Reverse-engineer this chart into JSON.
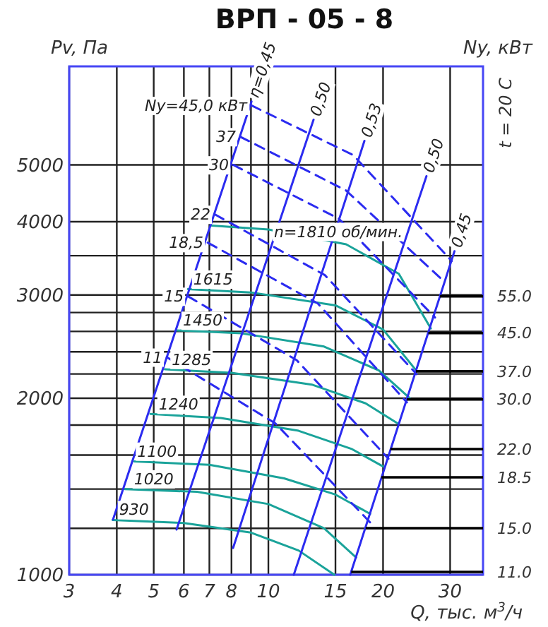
{
  "chart_data": {
    "type": "line",
    "title": "ВРП - 05 - 8",
    "xlabel": "Q, тыс. м$^{3}$/ч",
    "ylabel": "Pv, Па",
    "y2label": "Ny, кВт",
    "annotations": [
      "t = 20 C",
      {
        "text": "55.0",
        "x": 28.2,
        "y": 2984
      },
      {
        "text": "45.0",
        "x": 26.3,
        "y": 2583
      },
      {
        "text": "37.0",
        "x": 24.4,
        "y": 2223
      },
      {
        "text": "30.0",
        "x": 23.1,
        "y": 1990
      },
      {
        "text": "22.0",
        "x": 20.9,
        "y": 1638
      },
      {
        "text": "18.5",
        "x": 19.8,
        "y": 1466
      },
      {
        "text": "15.0",
        "x": 18,
        "y": 1201
      },
      {
        "text": "11.0",
        "x": 16.5,
        "y": 1011
      }
    ],
    "log": "xy",
    "grid": true,
    "xlim": [
      3,
      36.6
    ],
    "ylim": [
      1000,
      7360
    ],
    "xticks": [
      3,
      4,
      5,
      6,
      7,
      8,
      {
        "value": 9,
        "label": null
      },
      10,
      15,
      20,
      30
    ],
    "yticks": [
      1000,
      {
        "value": 1200,
        "label": null
      },
      {
        "value": 1400,
        "label": null
      },
      {
        "value": 1600,
        "label": null
      },
      {
        "value": 1800,
        "label": null
      },
      2000,
      {
        "value": 2200,
        "label": null
      },
      {
        "value": 2400,
        "label": null
      },
      {
        "value": 2600,
        "label": null
      },
      {
        "value": 2800,
        "label": null
      },
      3000,
      {
        "value": 3500,
        "label": null
      },
      4000,
      5000
    ],
    "series": [
      {
        "name": "n=1810 об/мин.",
        "color": "#1aa39a",
        "line_style": "solid",
        "x": [
          7.1,
          10,
          16,
          22,
          26.7
        ],
        "values": [
          3940,
          3880,
          3660,
          3260,
          2630
        ]
      },
      {
        "name": "1615",
        "color": "#1aa39a",
        "line_style": "solid",
        "x": [
          6.15,
          9,
          15,
          20,
          24.3
        ],
        "values": [
          3070,
          3030,
          2880,
          2620,
          2240
        ]
      },
      {
        "name": "1450",
        "color": "#1aa39a",
        "line_style": "solid",
        "x": [
          5.75,
          8.5,
          14,
          19.5,
          23.5
        ],
        "values": [
          2610,
          2580,
          2450,
          2230,
          2000
        ]
      },
      {
        "name": "1285",
        "color": "#1aa39a",
        "line_style": "solid",
        "x": [
          5.35,
          8,
          13,
          18,
          21.9
        ],
        "values": [
          2240,
          2210,
          2110,
          1960,
          1810
        ]
      },
      {
        "name": "1240",
        "color": "#1aa39a",
        "line_style": "solid",
        "x": [
          4.9,
          7.5,
          12,
          16.5,
          20
        ],
        "values": [
          1880,
          1850,
          1760,
          1640,
          1530
        ]
      },
      {
        "name": "1100",
        "color": "#1aa39a",
        "line_style": "solid",
        "x": [
          4.45,
          7,
          11,
          15,
          18.5
        ],
        "values": [
          1560,
          1540,
          1460,
          1370,
          1270
        ]
      },
      {
        "name": "1020",
        "color": "#1aa39a",
        "line_style": "solid",
        "x": [
          4.2,
          6.5,
          10,
          14,
          17
        ],
        "values": [
          1400,
          1385,
          1320,
          1200,
          1070
        ]
      },
      {
        "name": "930",
        "color": "#1aa39a",
        "line_style": "solid",
        "x": [
          3.9,
          6,
          9,
          12,
          14.9
        ],
        "values": [
          1240,
          1225,
          1180,
          1100,
          1000
        ]
      },
      {
        "name": "η=0,45",
        "color": "#2b2bf0",
        "line_style": "solid",
        "x": [
          3.91,
          9.03
        ],
        "values": [
          1242,
          6413
        ]
      },
      {
        "name": "0,50",
        "color": "#2b2bf0",
        "line_style": "solid",
        "x": [
          5.74,
          13.14
        ],
        "values": [
          1194,
          5970
        ]
      },
      {
        "name": "0,53",
        "color": "#2b2bf0",
        "line_style": "solid",
        "x": [
          8.08,
          17.87
        ],
        "values": [
          1111,
          5493
        ]
      },
      {
        "name": "0,50",
        "color": "#2b2bf0",
        "line_style": "solid",
        "x": [
          11.66,
          26
        ],
        "values": [
          1000,
          4783
        ]
      },
      {
        "name": "0,45",
        "color": "#2b2bf0",
        "line_style": "solid",
        "x": [
          16.4,
          30.8
        ],
        "values": [
          1000,
          3563
        ]
      },
      {
        "name": "Ny=45,0 кВт",
        "color": "#2b2bf0",
        "line_style": "dashed",
        "x": [
          9.03,
          16.69,
          30.3
        ],
        "values": [
          6313,
          5196,
          3427
        ]
      },
      {
        "name": "37",
        "color": "#2b2bf0",
        "line_style": "dashed",
        "x": [
          8.43,
          15.99,
          29.08
        ],
        "values": [
          5585,
          4521,
          3152
        ]
      },
      {
        "name": "30",
        "color": "#2b2bf0",
        "line_style": "dashed",
        "x": [
          8.08,
          15.31,
          27.38
        ],
        "values": [
          5000,
          4047,
          2746
        ]
      },
      {
        "name": "22",
        "color": "#2b2bf0",
        "line_style": "dashed",
        "x": [
          7.23,
          14.07,
          24.5
        ],
        "values": [
          4117,
          3243,
          2198
        ]
      },
      {
        "name": "18,5",
        "color": "#2b2bf0",
        "line_style": "dashed",
        "x": [
          6.93,
          13.48,
          23.1
        ],
        "values": [
          3684,
          2902,
          1968
        ]
      },
      {
        "name": "15",
        "color": "#2b2bf0",
        "line_style": "dashed",
        "x": [
          6.15,
          11.86,
          20.67
        ],
        "values": [
          2984,
          2323,
          1577
        ]
      },
      {
        "name": "11",
        "color": "#2b2bf0",
        "line_style": "dashed",
        "x": [
          5.41,
          10.44,
          18.5
        ],
        "values": [
          2350,
          1811,
          1228
        ]
      }
    ]
  }
}
